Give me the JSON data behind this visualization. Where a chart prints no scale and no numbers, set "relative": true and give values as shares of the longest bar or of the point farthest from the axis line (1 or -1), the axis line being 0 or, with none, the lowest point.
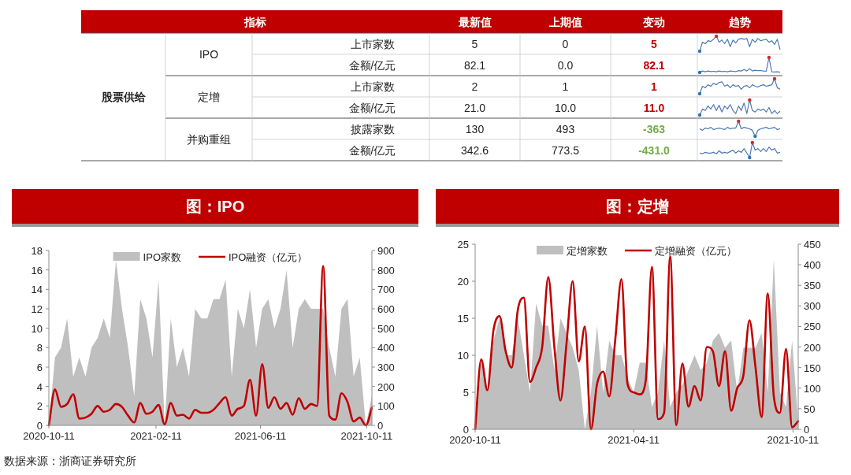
{
  "chart_data": [
    {
      "type": "other",
      "annotations": [
        "指标",
        "最新值",
        "上期值",
        "变动",
        "趋势",
        "股票供给",
        "IPO",
        "定增",
        "并购重组",
        "上市家数",
        "金额/亿元",
        "上市家数",
        "金额/亿元",
        "披露家数",
        "金额/亿元",
        "5",
        "0",
        "5",
        "82.1",
        "0.0",
        "82.1",
        "2",
        "1",
        "1",
        "21.0",
        "10.0",
        "11.0",
        "130",
        "493",
        "-363",
        "342.6",
        "773.5",
        "-431.0"
      ]
    },
    {
      "type": "line",
      "relative": true,
      "categories": [
        null,
        null,
        null,
        null,
        null,
        null,
        null,
        null,
        null,
        null,
        null,
        null,
        null,
        null,
        null,
        null,
        null,
        null,
        null,
        null,
        null,
        null,
        null,
        null,
        null,
        null,
        null,
        null,
        null,
        null
      ],
      "series": [
        {
          "color": "#4f79b0",
          "values": [
            0,
            0.6,
            0.5,
            0.7,
            0.65,
            0.8,
            1,
            0.6,
            0.75,
            0.5,
            0.8,
            0.3,
            0.75,
            0.55,
            0.8,
            0.85,
            0.8,
            0.85,
            0.3,
            0.8,
            0.6,
            0.85,
            0.7,
            0.75,
            0.8,
            0.6,
            0.7,
            0.45,
            0.8,
            0.1
          ]
        }
      ]
    },
    {
      "type": "line",
      "relative": true,
      "categories": [
        null,
        null,
        null,
        null,
        null,
        null,
        null,
        null,
        null,
        null,
        null,
        null,
        null,
        null,
        null,
        null,
        null,
        null,
        null,
        null,
        null,
        null,
        null,
        null,
        null,
        null,
        null,
        null,
        null,
        null
      ],
      "series": [
        {
          "color": "#4f79b0",
          "values": [
            0,
            0.1,
            0.05,
            0.1,
            0.06,
            0.08,
            0.05,
            0.1,
            0.06,
            0.08,
            0.05,
            0.1,
            0.08,
            0.06,
            0.12,
            0.1,
            0.2,
            0.1,
            0.25,
            0.1,
            0.15,
            0.12,
            0.13,
            0.1,
            0.08,
            1,
            0.05,
            0.03,
            0.05,
            0.02
          ]
        }
      ]
    },
    {
      "type": "line",
      "relative": true,
      "categories": [
        null,
        null,
        null,
        null,
        null,
        null,
        null,
        null,
        null,
        null,
        null,
        null,
        null,
        null,
        null,
        null,
        null,
        null,
        null,
        null,
        null,
        null,
        null,
        null,
        null,
        null,
        null,
        null,
        null,
        null
      ],
      "series": [
        {
          "color": "#4f79b0",
          "values": [
            0,
            0.5,
            0.4,
            0.6,
            0.5,
            0.7,
            0.6,
            0.75,
            0.8,
            0.5,
            0.6,
            0.4,
            0.6,
            0.5,
            0.55,
            0.3,
            0.5,
            0.55,
            0.4,
            0.6,
            0.5,
            0.45,
            0.55,
            0.6,
            0.5,
            0.55,
            0.6,
            1,
            0.4,
            0.3
          ]
        }
      ]
    },
    {
      "type": "line",
      "relative": true,
      "categories": [
        null,
        null,
        null,
        null,
        null,
        null,
        null,
        null,
        null,
        null,
        null,
        null,
        null,
        null,
        null,
        null,
        null,
        null,
        null,
        null,
        null,
        null,
        null,
        null,
        null,
        null,
        null,
        null,
        null,
        null
      ],
      "series": [
        {
          "color": "#4f79b0",
          "values": [
            0,
            0.4,
            0.3,
            0.6,
            0.4,
            0.7,
            0.3,
            0.65,
            0.2,
            0.6,
            0.4,
            0.7,
            0.3,
            0.1,
            0.6,
            0.3,
            0.8,
            0.1,
            1,
            0.3,
            0.2,
            0.4,
            0.3,
            0.4,
            0.2,
            0.5,
            0.1,
            0.3,
            0.1,
            0.25
          ]
        }
      ]
    },
    {
      "type": "line",
      "relative": true,
      "categories": [
        null,
        null,
        null,
        null,
        null,
        null,
        null,
        null,
        null,
        null,
        null,
        null,
        null,
        null,
        null,
        null,
        null,
        null,
        null,
        null,
        null,
        null,
        null,
        null,
        null,
        null,
        null,
        null,
        null,
        null
      ],
      "series": [
        {
          "color": "#4f79b0",
          "values": [
            0.5,
            0.4,
            0.55,
            0.5,
            0.6,
            0.45,
            0.5,
            0.55,
            0.5,
            0.45,
            0.6,
            0.5,
            0.55,
            0.55,
            1,
            0.5,
            0.6,
            0.55,
            0.5,
            0.4,
            0,
            0.4,
            0.5,
            0.55,
            0.6,
            0.5,
            0.55,
            0.6,
            0.45,
            0.5
          ]
        }
      ]
    },
    {
      "type": "line",
      "relative": true,
      "categories": [
        null,
        null,
        null,
        null,
        null,
        null,
        null,
        null,
        null,
        null,
        null,
        null,
        null,
        null,
        null,
        null,
        null,
        null,
        null,
        null,
        null,
        null,
        null,
        null,
        null,
        null,
        null,
        null,
        null,
        null
      ],
      "series": [
        {
          "color": "#4f79b0",
          "values": [
            0.3,
            0.25,
            0.35,
            0.3,
            0.3,
            0.35,
            0.25,
            0.45,
            0.3,
            0.35,
            0.3,
            0.4,
            0.5,
            0.3,
            0.45,
            0.35,
            0.6,
            0.3,
            0,
            1,
            0.5,
            0.6,
            0.4,
            0.6,
            0.4,
            0.7,
            0.5,
            0.6,
            0.3,
            0.35
          ]
        }
      ]
    },
    {
      "type": "area",
      "title": "图：IPO",
      "legend": "top",
      "annotations": [
        "数据来源：浙商证券研究所"
      ],
      "x": [
        "2020-10-11",
        "2020-10-18",
        "2020-10-25",
        "2020-11-01",
        "2020-11-08",
        "2020-11-15",
        "2020-11-22",
        "2020-11-29",
        "2020-12-06",
        "2020-12-13",
        "2020-12-20",
        "2020-12-27",
        "2021-01-03",
        "2021-01-10",
        "2021-01-17",
        "2021-01-24",
        "2021-01-31",
        "2021-02-07",
        "2021-02-14",
        "2021-02-21",
        "2021-02-28",
        "2021-03-07",
        "2021-03-14",
        "2021-03-21",
        "2021-03-28",
        "2021-04-04",
        "2021-04-11",
        "2021-04-18",
        "2021-04-25",
        "2021-05-02",
        "2021-05-09",
        "2021-05-16",
        "2021-05-23",
        "2021-05-30",
        "2021-06-06",
        "2021-06-13",
        "2021-06-20",
        "2021-06-27",
        "2021-07-04",
        "2021-07-11",
        "2021-07-18",
        "2021-07-25",
        "2021-08-01",
        "2021-08-08",
        "2021-08-15",
        "2021-08-22",
        "2021-08-29",
        "2021-09-05",
        "2021-09-12",
        "2021-09-19",
        "2021-09-26",
        "2021-10-03",
        "2021-10-10",
        "2021-10-17"
      ],
      "xlim": [
        "2020-10-11",
        "2021-10-17"
      ],
      "xticks": [
        "2020-10-11",
        "2021-02-11",
        "2021-06-11",
        "2021-10-11"
      ],
      "ylim": [
        0,
        18
      ],
      "yticks": [
        0,
        2,
        4,
        6,
        8,
        10,
        12,
        14,
        16,
        18
      ],
      "y2lim": [
        0,
        900
      ],
      "y2ticks": [
        0,
        100,
        200,
        300,
        400,
        500,
        600,
        700,
        800,
        900
      ],
      "series": [
        {
          "name": "IPO家数",
          "type": "area",
          "color": "#bfbfbf",
          "values": [
            0,
            7,
            8,
            11,
            5,
            7,
            5,
            8,
            9,
            11,
            9,
            17,
            12,
            8,
            3,
            13,
            11,
            7,
            15,
            0,
            11,
            6,
            8,
            5,
            12,
            11,
            11,
            13,
            13,
            15,
            5,
            12,
            10,
            14,
            8,
            12,
            13,
            10,
            12,
            16,
            8,
            12,
            13,
            12,
            12,
            12,
            8,
            5,
            12,
            13,
            5,
            7,
            0,
            3
          ]
        },
        {
          "name": "IPO融资（亿元）",
          "type": "line",
          "axis": "y2",
          "color": "#c00000",
          "values": [
            0,
            185,
            95,
            110,
            160,
            35,
            40,
            60,
            100,
            70,
            80,
            110,
            95,
            50,
            15,
            115,
            60,
            70,
            105,
            5,
            115,
            50,
            55,
            35,
            80,
            65,
            65,
            80,
            115,
            145,
            50,
            85,
            100,
            235,
            50,
            315,
            90,
            145,
            85,
            115,
            55,
            140,
            85,
            110,
            100,
            820,
            50,
            30,
            165,
            120,
            20,
            40,
            0,
            90
          ]
        }
      ]
    },
    {
      "type": "area",
      "title": "图：定增",
      "legend": "top",
      "x": [
        "2020-10-11",
        "2020-10-18",
        "2020-10-25",
        "2020-11-01",
        "2020-11-08",
        "2020-11-15",
        "2020-11-22",
        "2020-11-29",
        "2020-12-06",
        "2020-12-13",
        "2020-12-20",
        "2020-12-27",
        "2021-01-03",
        "2021-01-10",
        "2021-01-17",
        "2021-01-24",
        "2021-01-31",
        "2021-02-07",
        "2021-02-14",
        "2021-02-21",
        "2021-02-28",
        "2021-03-07",
        "2021-03-14",
        "2021-03-21",
        "2021-03-28",
        "2021-04-04",
        "2021-04-11",
        "2021-04-18",
        "2021-04-25",
        "2021-05-02",
        "2021-05-09",
        "2021-05-16",
        "2021-05-23",
        "2021-05-30",
        "2021-06-06",
        "2021-06-13",
        "2021-06-20",
        "2021-06-27",
        "2021-07-04",
        "2021-07-11",
        "2021-07-18",
        "2021-07-25",
        "2021-08-01",
        "2021-08-08",
        "2021-08-15",
        "2021-08-22",
        "2021-08-29",
        "2021-09-05",
        "2021-09-12",
        "2021-09-19",
        "2021-09-26",
        "2021-10-03",
        "2021-10-10",
        "2021-10-17"
      ],
      "xlim": [
        "2020-10-11",
        "2021-10-17"
      ],
      "xticks": [
        "2020-10-11",
        "2021-04-11",
        "2021-10-11"
      ],
      "ylim": [
        0,
        25
      ],
      "yticks": [
        0,
        5,
        10,
        15,
        20,
        25
      ],
      "y2lim": [
        0,
        450
      ],
      "y2ticks": [
        0,
        50,
        100,
        150,
        200,
        250,
        300,
        350,
        400,
        450
      ],
      "series": [
        {
          "name": "定增家数",
          "type": "area",
          "color": "#bfbfbf",
          "values": [
            0,
            9,
            5,
            12,
            15,
            10,
            10,
            15,
            10,
            5,
            17,
            14,
            14,
            8,
            15,
            13,
            11,
            8,
            0,
            5,
            14,
            5,
            12,
            10,
            10,
            7,
            5,
            9,
            9,
            3,
            5,
            12,
            3,
            5,
            6,
            8,
            10,
            8,
            9,
            12,
            13,
            11,
            12,
            5,
            11,
            11,
            11,
            13,
            5,
            23,
            5,
            3,
            12,
            1
          ]
        },
        {
          "name": "定增融资（亿元）",
          "type": "line",
          "axis": "y2",
          "color": "#c00000",
          "values": [
            0,
            170,
            95,
            240,
            275,
            190,
            150,
            290,
            320,
            115,
            150,
            200,
            370,
            200,
            70,
            210,
            360,
            165,
            250,
            0,
            110,
            140,
            80,
            220,
            365,
            110,
            90,
            85,
            120,
            395,
            25,
            40,
            420,
            10,
            160,
            55,
            105,
            70,
            200,
            190,
            105,
            190,
            45,
            100,
            130,
            265,
            150,
            30,
            330,
            80,
            40,
            195,
            5,
            20
          ]
        }
      ]
    }
  ]
}
